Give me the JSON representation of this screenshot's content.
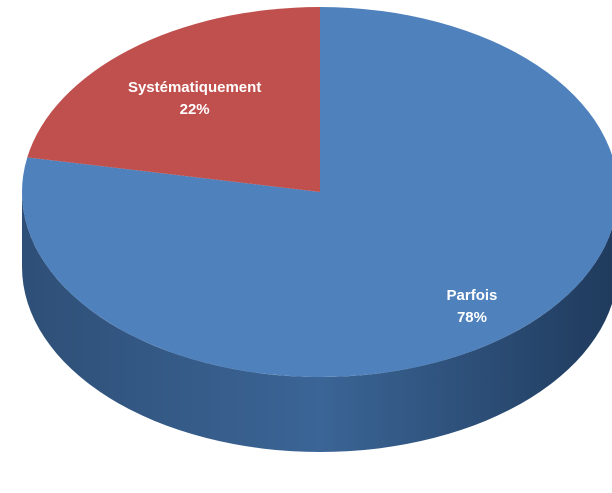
{
  "chart_data": {
    "type": "pie",
    "three_d": true,
    "categories": [
      "Parfois",
      "Systématiquement"
    ],
    "values": [
      78,
      22
    ],
    "value_labels": [
      "78%",
      "22%"
    ],
    "colors": [
      "#4f81bd",
      "#c0504d"
    ]
  }
}
